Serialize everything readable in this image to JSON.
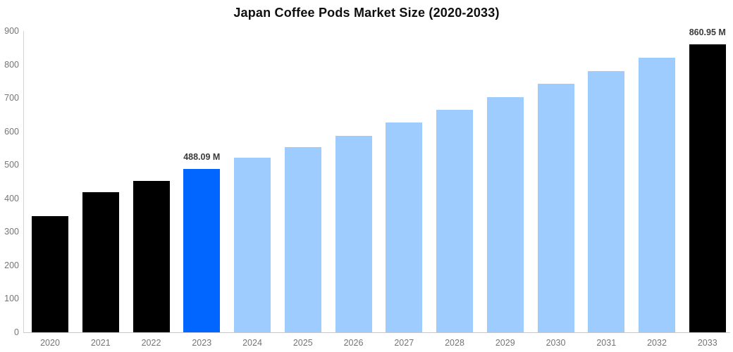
{
  "title": "Japan Coffee Pods Market Size (2020-2033)",
  "colors": {
    "default_bar": "#000000",
    "highlight_bar": "#0066ff",
    "forecast_bar": "#9fccff",
    "y_axis_line": "#d3d3d3",
    "x_axis_line": "#c9c9c9",
    "tick_label": "#757575",
    "data_label": "#3a3a3a",
    "title_text": "#0f0f0f",
    "background": "#ffffff"
  },
  "chart_data": {
    "type": "bar",
    "title": "Japan Coffee Pods Market Size (2020-2033)",
    "xlabel": "",
    "ylabel": "",
    "categories": [
      "2020",
      "2021",
      "2022",
      "2023",
      "2024",
      "2025",
      "2026",
      "2027",
      "2028",
      "2029",
      "2030",
      "2031",
      "2032",
      "2033"
    ],
    "values": [
      346,
      419,
      453,
      488.09,
      522,
      553,
      587,
      626,
      665,
      703,
      742,
      781,
      820,
      860.95
    ],
    "bar_colors": [
      "#000000",
      "#000000",
      "#000000",
      "#0066ff",
      "#9fccff",
      "#9fccff",
      "#9fccff",
      "#9fccff",
      "#9fccff",
      "#9fccff",
      "#9fccff",
      "#9fccff",
      "#9fccff",
      "#000000"
    ],
    "data_labels": [
      null,
      null,
      null,
      "488.09 M",
      null,
      null,
      null,
      null,
      null,
      null,
      null,
      null,
      null,
      "860.95 M"
    ],
    "ylim": [
      0,
      900
    ],
    "yticks": [
      0,
      100,
      200,
      300,
      400,
      500,
      600,
      700,
      800,
      900
    ],
    "grid": false,
    "legend": false
  }
}
